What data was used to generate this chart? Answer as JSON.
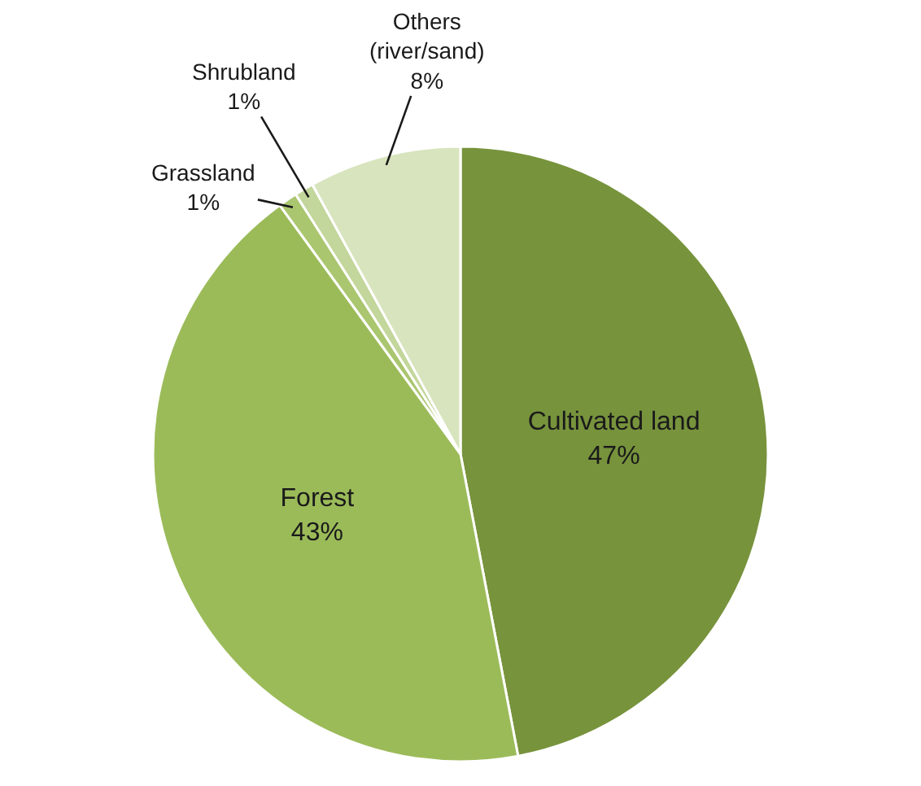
{
  "chart_data": {
    "type": "pie",
    "categories": [
      "Cultivated land",
      "Forest",
      "Grassland",
      "Shrubland",
      "Others (river/sand)"
    ],
    "values": [
      47,
      43,
      1,
      1,
      8
    ],
    "value_labels": [
      "47%",
      "43%",
      "1%",
      "1%",
      "8%"
    ],
    "colors": [
      "#77933c",
      "#9bbb59",
      "#aac66f",
      "#c3d69b",
      "#d7e4bd"
    ],
    "legend": false
  }
}
